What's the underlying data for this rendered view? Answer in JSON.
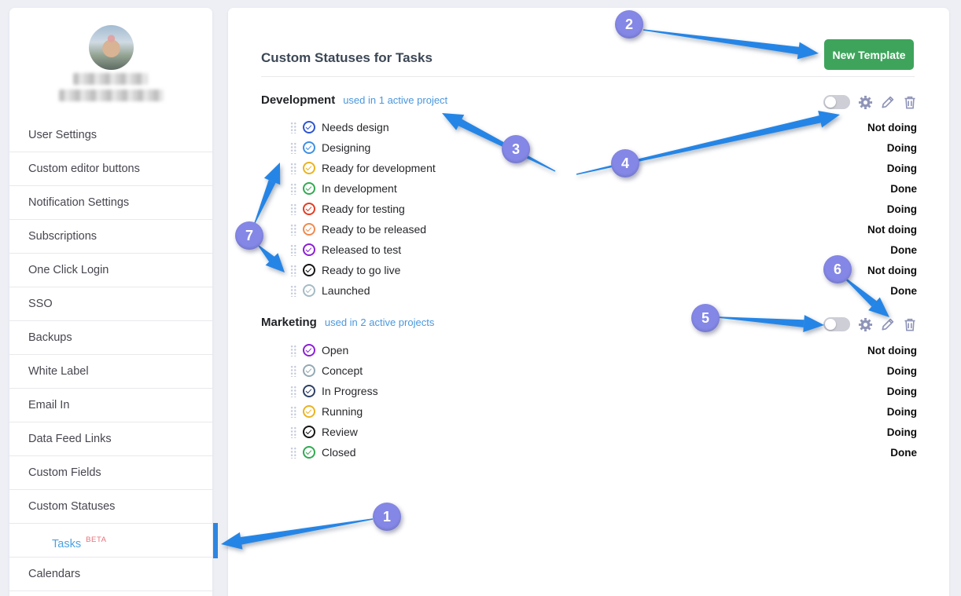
{
  "sidebar": {
    "items": [
      {
        "label": "User Settings"
      },
      {
        "label": "Custom editor buttons"
      },
      {
        "label": "Notification Settings"
      },
      {
        "label": "Subscriptions"
      },
      {
        "label": "One Click Login"
      },
      {
        "label": "SSO"
      },
      {
        "label": "Backups"
      },
      {
        "label": "White Label"
      },
      {
        "label": "Email In"
      },
      {
        "label": "Data Feed Links"
      },
      {
        "label": "Custom Fields"
      },
      {
        "label": "Custom Statuses"
      },
      {
        "label": "Tasks",
        "badge": "BETA",
        "active": true
      },
      {
        "label": "Calendars"
      }
    ]
  },
  "main": {
    "title": "Custom Statuses for Tasks",
    "new_template_label": "New Template",
    "templates": [
      {
        "name": "Development",
        "usage_link": "used in 1 active project",
        "toggle_state": "off",
        "statuses": [
          {
            "label": "Needs design",
            "color": "#2d55cf",
            "meaning": "Not doing"
          },
          {
            "label": "Designing",
            "color": "#3f8fe3",
            "meaning": "Doing"
          },
          {
            "label": "Ready for development",
            "color": "#eab320",
            "meaning": "Doing"
          },
          {
            "label": "In development",
            "color": "#31aa51",
            "meaning": "Done"
          },
          {
            "label": "Ready for testing",
            "color": "#e43c22",
            "meaning": "Doing"
          },
          {
            "label": "Ready to be released",
            "color": "#f0894d",
            "meaning": "Not doing"
          },
          {
            "label": "Released to test",
            "color": "#8b1fd6",
            "meaning": "Done"
          },
          {
            "label": "Ready to go live",
            "color": "#141414",
            "meaning": "Not doing"
          },
          {
            "label": "Launched",
            "color": "#a4bbc4",
            "meaning": "Done"
          }
        ]
      },
      {
        "name": "Marketing",
        "usage_link": "used in 2 active projects",
        "toggle_state": "off",
        "statuses": [
          {
            "label": "Open",
            "color": "#8b1fd6",
            "meaning": "Not doing"
          },
          {
            "label": "Concept",
            "color": "#93a9b4",
            "meaning": "Doing"
          },
          {
            "label": "In Progress",
            "color": "#2c3f66",
            "meaning": "Doing"
          },
          {
            "label": "Running",
            "color": "#eab320",
            "meaning": "Doing"
          },
          {
            "label": "Review",
            "color": "#141414",
            "meaning": "Doing"
          },
          {
            "label": "Closed",
            "color": "#31aa51",
            "meaning": "Done"
          }
        ]
      }
    ]
  },
  "callouts": {
    "labels": [
      "1",
      "2",
      "3",
      "4",
      "5",
      "6",
      "7"
    ]
  },
  "colors": {
    "arrow_blue": "#2585e6",
    "badge_purple": "#8487e6",
    "button_green": "#3ea45c",
    "link_blue": "#4a97dd",
    "beta_red": "#e8707a",
    "active_bar_blue": "#2e86e0",
    "meaning_text": "#0c0c0d"
  }
}
